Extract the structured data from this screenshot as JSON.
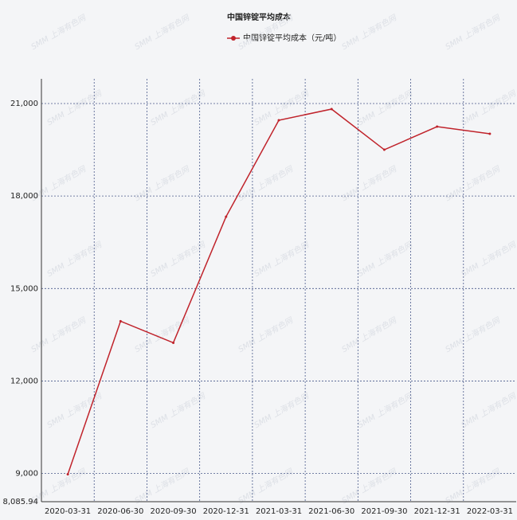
{
  "chart_data": {
    "type": "line",
    "title": "中国锌锭平均成本",
    "watermark": "SMM 上海有色网",
    "categories": [
      "2020-03-31",
      "2020-06-30",
      "2020-09-30",
      "2020-12-31",
      "2021-03-31",
      "2021-06-30",
      "2021-09-30",
      "2021-12-31",
      "2022-03-31"
    ],
    "series": [
      {
        "name": "中国锌锭平均成本（元/吨）",
        "color": "#c0232b",
        "values": [
          8975,
          13940,
          13240,
          17330,
          20457,
          20819,
          19500,
          20250,
          20017
        ]
      }
    ],
    "ylim": [
      8085.94,
      21800
    ],
    "yticks": [
      {
        "value": 8085.94,
        "label": "8,085.94"
      },
      {
        "value": 9000,
        "label": "9,000"
      },
      {
        "value": 12000,
        "label": "12,000"
      },
      {
        "value": 15000,
        "label": "15,000"
      },
      {
        "value": 18000,
        "label": "18,000"
      },
      {
        "value": 21000,
        "label": "21,000"
      }
    ],
    "grid": true
  }
}
